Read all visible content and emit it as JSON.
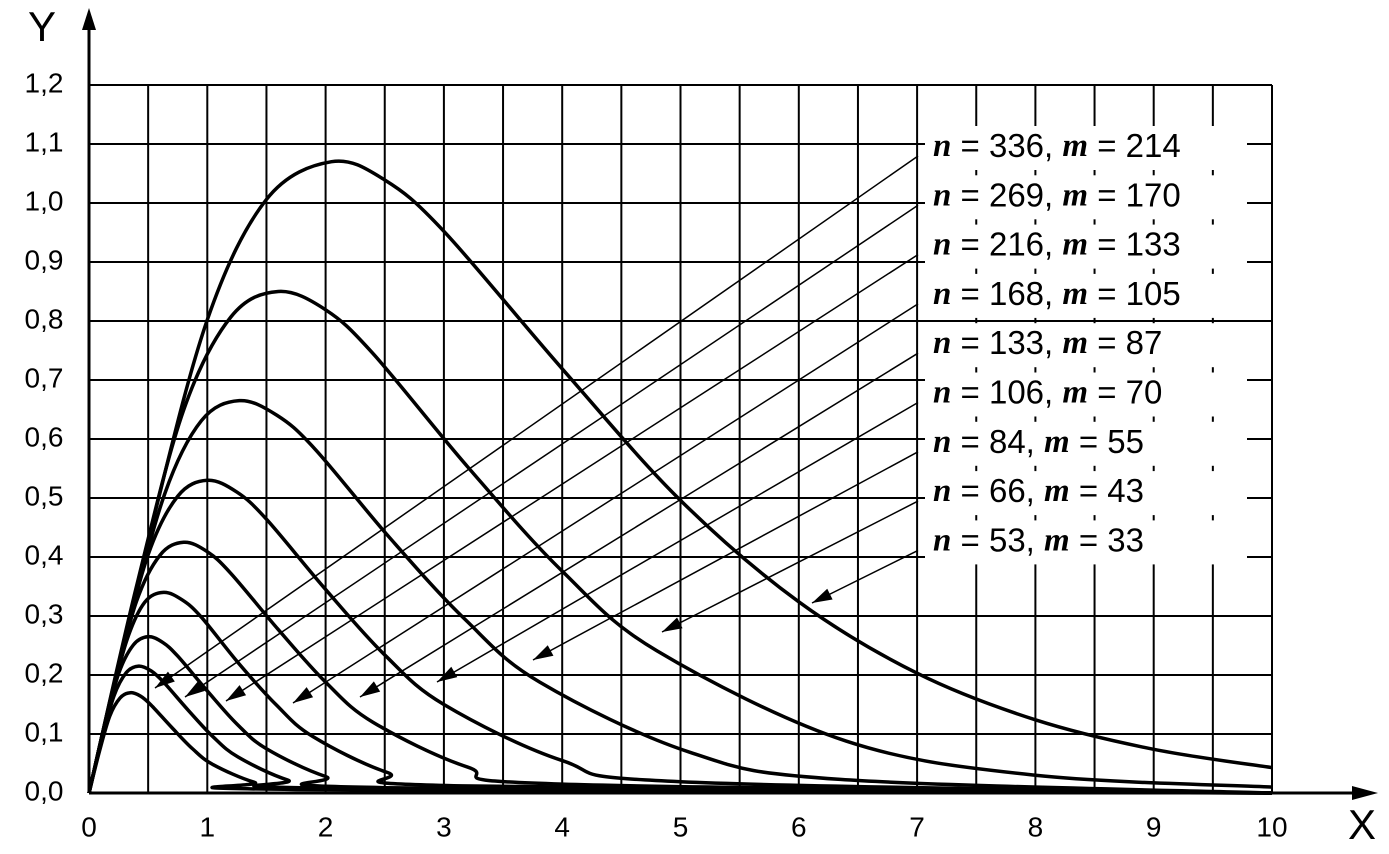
{
  "chart_data": {
    "type": "line",
    "xlabel": "X",
    "ylabel": "Y",
    "xlim": [
      0,
      10
    ],
    "ylim": [
      0,
      1.2
    ],
    "xticks": [
      0,
      1,
      2,
      3,
      4,
      5,
      6,
      7,
      8,
      9,
      10
    ],
    "xminor": [
      0.5,
      1.5,
      2.5,
      3.5,
      4.5,
      5.5,
      6.5,
      7.5,
      8.5,
      9.5
    ],
    "yticks": [
      {
        "value": 0,
        "label": "0,0"
      },
      {
        "value": 0.1,
        "label": "0,1"
      },
      {
        "value": 0.2,
        "label": "0,2"
      },
      {
        "value": 0.3,
        "label": "0,3"
      },
      {
        "value": 0.4,
        "label": "0,4"
      },
      {
        "value": 0.5,
        "label": "0,5"
      },
      {
        "value": 0.6,
        "label": "0,6"
      },
      {
        "value": 0.7,
        "label": "0,7"
      },
      {
        "value": 0.8,
        "label": "0,8"
      },
      {
        "value": 0.9,
        "label": "0,9"
      },
      {
        "value": 1.0,
        "label": "1,0"
      },
      {
        "value": 1.1,
        "label": "1,1"
      },
      {
        "value": 1.2,
        "label": "1,2"
      }
    ],
    "grid": true,
    "series": [
      {
        "name": "n = 336, m = 214",
        "color": "#000000",
        "x": [
          0,
          0.0875,
          0.175,
          0.2625,
          0.35,
          0.4375,
          0.525,
          0.7,
          0.875,
          1.05,
          1.4,
          1.75,
          10
        ],
        "values": [
          0,
          0.07,
          0.13,
          0.161,
          0.17,
          0.164,
          0.149,
          0.111,
          0.075,
          0.048,
          0.018,
          0.006,
          0
        ]
      },
      {
        "name": "n = 269, m = 170",
        "color": "#000000",
        "x": [
          0,
          0.105,
          0.21,
          0.315,
          0.42,
          0.525,
          0.63,
          0.84,
          1.05,
          1.26,
          1.68,
          2.1,
          10
        ],
        "values": [
          0,
          0.088,
          0.164,
          0.204,
          0.215,
          0.207,
          0.188,
          0.14,
          0.095,
          0.061,
          0.022,
          0.008,
          0
        ]
      },
      {
        "name": "n = 216, m = 133",
        "color": "#000000",
        "x": [
          0,
          0.125,
          0.25,
          0.375,
          0.5,
          0.625,
          0.75,
          1,
          1.25,
          1.5,
          2,
          2.5,
          10
        ],
        "values": [
          0,
          0.109,
          0.202,
          0.251,
          0.265,
          0.255,
          0.232,
          0.173,
          0.117,
          0.075,
          0.028,
          0.009,
          0
        ]
      },
      {
        "name": "n = 168, m = 105",
        "color": "#000000",
        "x": [
          0,
          0.16,
          0.32,
          0.47,
          0.63,
          0.79,
          0.95,
          1.26,
          1.58,
          1.89,
          2.52,
          3.15,
          10
        ],
        "values": [
          0,
          0.139,
          0.259,
          0.323,
          0.34,
          0.327,
          0.298,
          0.221,
          0.15,
          0.096,
          0.035,
          0.012,
          0
        ]
      },
      {
        "name": "n = 133, m = 87",
        "color": "#000000",
        "x": [
          0,
          0.2,
          0.4,
          0.6,
          0.8,
          1,
          1.2,
          1.6,
          2,
          2.4,
          3.2,
          4,
          10
        ],
        "values": [
          0,
          0.174,
          0.324,
          0.403,
          0.425,
          0.409,
          0.372,
          0.277,
          0.188,
          0.12,
          0.044,
          0.015,
          0
        ]
      },
      {
        "name": "n = 106, m = 70",
        "color": "#000000",
        "x": [
          0,
          0.25,
          0.5,
          0.75,
          1,
          1.25,
          1.5,
          2,
          2.5,
          3,
          4,
          5,
          10
        ],
        "values": [
          0,
          0.217,
          0.404,
          0.503,
          0.53,
          0.51,
          0.464,
          0.345,
          0.234,
          0.15,
          0.055,
          0.019,
          0
        ]
      },
      {
        "name": "n = 84, m = 55",
        "color": "#000000",
        "x": [
          0,
          0.32,
          0.64,
          0.95,
          1.27,
          1.59,
          1.91,
          2.54,
          3.18,
          3.81,
          5.08,
          6.35,
          10
        ],
        "values": [
          0,
          0.273,
          0.507,
          0.631,
          0.665,
          0.64,
          0.583,
          0.433,
          0.294,
          0.188,
          0.069,
          0.023,
          0
        ]
      },
      {
        "name": "n = 66, m = 43",
        "color": "#000000",
        "x": [
          0,
          0.4,
          0.8,
          1.2,
          1.6,
          2,
          2.4,
          3.2,
          4,
          4.8,
          6.4,
          8,
          10
        ],
        "values": [
          0,
          0.349,
          0.649,
          0.807,
          0.85,
          0.819,
          0.745,
          0.553,
          0.376,
          0.241,
          0.088,
          0.03,
          0.01
        ]
      },
      {
        "name": "n = 53, m = 33",
        "color": "#000000",
        "x": [
          0,
          0.5,
          1,
          1.5,
          2.05,
          2.5,
          3,
          4,
          5,
          6,
          7,
          8,
          9,
          10
        ],
        "values": [
          0,
          0.428,
          0.802,
          1.006,
          1.07,
          1.039,
          0.952,
          0.719,
          0.496,
          0.324,
          0.203,
          0.124,
          0.074,
          0.043
        ]
      }
    ]
  }
}
